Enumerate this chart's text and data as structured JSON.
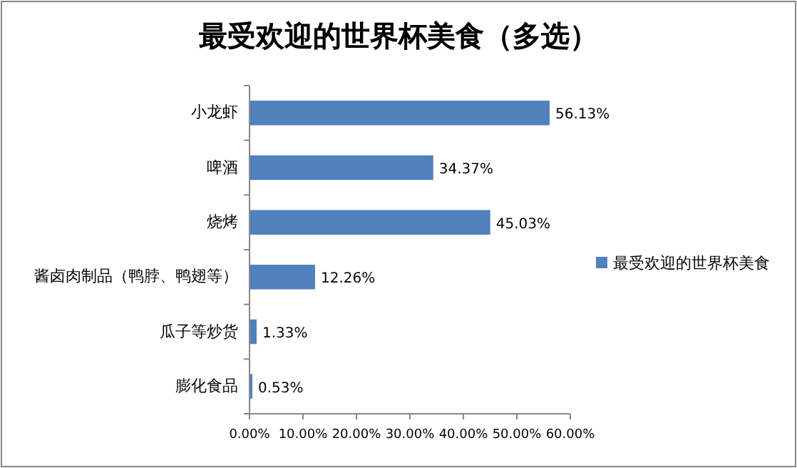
{
  "chart_data": {
    "type": "bar",
    "orientation": "horizontal",
    "title": "最受欢迎的世界杯美食（多选）",
    "categories": [
      "小龙虾",
      "啤酒",
      "烧烤",
      "酱卤肉制品（鸭脖、鸭翅等）",
      "瓜子等炒货",
      "膨化食品"
    ],
    "series": [
      {
        "name": "最受欢迎的世界杯美食",
        "color": "#4f81bd",
        "values": [
          56.13,
          34.37,
          45.03,
          12.26,
          1.33,
          0.53
        ],
        "value_labels": [
          "56.13%",
          "34.37%",
          "45.03%",
          "12.26%",
          "1.33%",
          "0.53%"
        ]
      }
    ],
    "xlim": [
      0,
      60
    ],
    "xticks": [
      {
        "value": 0,
        "label": "0.00%"
      },
      {
        "value": 10,
        "label": "10.00%"
      },
      {
        "value": 20,
        "label": "20.00%"
      },
      {
        "value": 30,
        "label": "30.00%"
      },
      {
        "value": 40,
        "label": "40.00%"
      },
      {
        "value": 50,
        "label": "50.00%"
      },
      {
        "value": 60,
        "label": "60.00%"
      }
    ],
    "legend": "right",
    "grid": false
  }
}
